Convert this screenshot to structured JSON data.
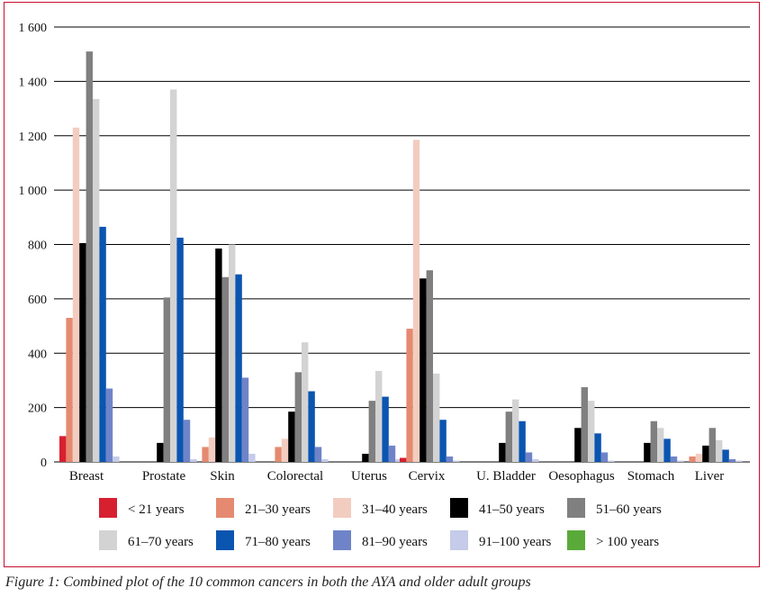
{
  "caption": "Figure 1: Combined plot of the 10 common cancers in both the AYA and older adult groups",
  "chart_data": {
    "type": "bar",
    "categories": [
      "Breast",
      "Prostate",
      "Skin",
      "Colorectal",
      "Uterus",
      "Cervix",
      "U. Bladder",
      "Oesophagus",
      "Stomach",
      "Liver"
    ],
    "ylim": [
      0,
      1600
    ],
    "yticks": [
      0,
      200,
      400,
      600,
      800,
      1000,
      1200,
      1400,
      1600
    ],
    "ytick_labels": [
      "0",
      "200",
      "400",
      "600",
      "800",
      "1 000",
      "1 200",
      "1 400",
      "1 600"
    ],
    "grid": true,
    "legend_position": "bottom",
    "series": [
      {
        "name": "< 21 years",
        "color": "#d62030",
        "values": [
          95,
          0,
          0,
          0,
          0,
          15,
          0,
          0,
          0,
          0
        ]
      },
      {
        "name": "21–30 years",
        "color": "#e58a70",
        "values": [
          530,
          0,
          55,
          55,
          0,
          490,
          0,
          0,
          0,
          20
        ]
      },
      {
        "name": "31–40 years",
        "color": "#f2cdbf",
        "values": [
          1230,
          0,
          90,
          85,
          0,
          1185,
          0,
          0,
          0,
          30
        ]
      },
      {
        "name": "41–50 years",
        "color": "#000000",
        "values": [
          805,
          70,
          785,
          185,
          30,
          675,
          70,
          125,
          70,
          60
        ]
      },
      {
        "name": "51–60 years",
        "color": "#808080",
        "values": [
          1510,
          605,
          680,
          330,
          225,
          705,
          185,
          275,
          150,
          125
        ]
      },
      {
        "name": "61–70 years",
        "color": "#d3d3d3",
        "values": [
          1335,
          1370,
          800,
          440,
          335,
          325,
          230,
          225,
          125,
          80
        ]
      },
      {
        "name": "71–80 years",
        "color": "#0a55b0",
        "values": [
          865,
          825,
          690,
          260,
          240,
          155,
          150,
          105,
          85,
          45
        ]
      },
      {
        "name": "81–90 years",
        "color": "#6f84c8",
        "values": [
          270,
          155,
          310,
          55,
          60,
          20,
          35,
          35,
          20,
          10
        ]
      },
      {
        "name": "91–100 years",
        "color": "#c5cbe8",
        "values": [
          20,
          10,
          30,
          10,
          10,
          5,
          10,
          5,
          5,
          5
        ]
      },
      {
        "name": "> 100 years",
        "color": "#5aaa3a",
        "values": [
          0,
          0,
          0,
          0,
          0,
          0,
          0,
          0,
          0,
          0
        ]
      }
    ]
  }
}
